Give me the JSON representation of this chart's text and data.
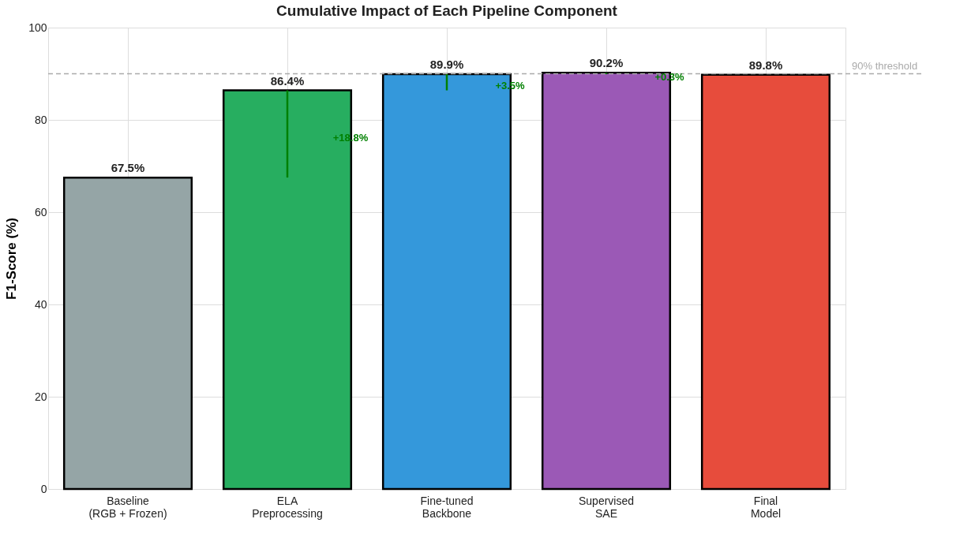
{
  "chart_data": {
    "type": "bar",
    "title": "Cumulative Impact of Each Pipeline Component",
    "ylabel": "F1-Score (%)",
    "categories": [
      "Baseline\n(RGB + Frozen)",
      "ELA\nPreprocessing",
      "Fine-tuned\nBackbone",
      "Supervised\nSAE",
      "Final\nModel"
    ],
    "values": [
      67.5,
      86.4,
      89.9,
      90.2,
      89.8
    ],
    "colors": [
      "#95a5a6",
      "#27ae60",
      "#3498db",
      "#9b59b6",
      "#e74c3c"
    ],
    "value_labels": [
      "67.5%",
      "86.4%",
      "89.9%",
      "90.2%",
      "89.8%"
    ],
    "ylim": [
      0,
      100
    ],
    "yticks": [
      0,
      20,
      40,
      60,
      80,
      100
    ],
    "grid": true,
    "ref_lines": [
      {
        "axis": "y",
        "value": 90,
        "label": "90% threshold",
        "color": "#aaaaaa",
        "line_style": "dashed"
      }
    ],
    "annotations": [
      "+18.8%",
      "+3.5%",
      "+0.3%"
    ]
  }
}
